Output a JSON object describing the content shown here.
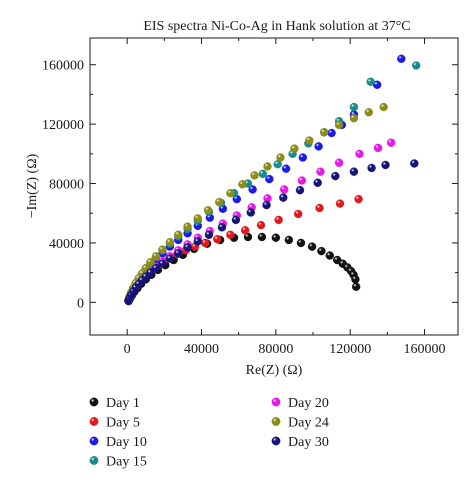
{
  "chart_data": {
    "type": "scatter",
    "title": "EIS spectra Ni-Co-Ag in Hank solution at 37°C",
    "xlabel": "Re(Z) (Ω)",
    "ylabel": "−Im(Z) (Ω)",
    "xlim": [
      -20000,
      178000
    ],
    "ylim": [
      -22000,
      178000
    ],
    "xticks": [
      0,
      40000,
      80000,
      120000,
      160000
    ],
    "yticks": [
      0,
      40000,
      80000,
      120000,
      160000
    ],
    "grid": false,
    "legend_position": "bottom, outside plot, two columns",
    "series": [
      {
        "name": "Day 1",
        "color": "#111111",
        "x": [
          800,
          1500,
          2500,
          3800,
          5500,
          7500,
          10000,
          13000,
          16500,
          20500,
          25000,
          30000,
          36000,
          43000,
          50000,
          57500,
          65000,
          72500,
          80000,
          87000,
          93500,
          99500,
          104500,
          109000,
          113000,
          116000,
          118500,
          120500,
          121800,
          122800,
          123200
        ],
        "y": [
          800,
          2500,
          4500,
          7000,
          9500,
          12500,
          15500,
          18500,
          21800,
          25000,
          28500,
          32000,
          36000,
          39500,
          42000,
          43500,
          44000,
          44000,
          43500,
          42000,
          40000,
          37500,
          34500,
          31500,
          28500,
          26000,
          23500,
          21000,
          18500,
          15500,
          10500
        ]
      },
      {
        "name": "Day 5",
        "color": "#e0191e",
        "x": [
          700,
          1300,
          2200,
          3300,
          4600,
          6000,
          7600,
          9500,
          11500,
          14000,
          16500,
          19500,
          23000,
          27000,
          31500,
          36500,
          42000,
          48500,
          55500,
          63500,
          72000,
          81500,
          92000,
          103500,
          114500,
          124500
        ],
        "y": [
          1000,
          2800,
          5000,
          7500,
          10000,
          12500,
          15000,
          17500,
          20000,
          22500,
          25000,
          27500,
          30000,
          32500,
          35000,
          37500,
          40000,
          42500,
          45500,
          48500,
          52000,
          55500,
          59500,
          63500,
          66500,
          69500
        ]
      },
      {
        "name": "Day 10",
        "color": "#1a1ae6",
        "x": [
          700,
          1300,
          2200,
          3300,
          4600,
          6200,
          8000,
          10000,
          12500,
          15500,
          19000,
          23000,
          27500,
          32500,
          38000,
          44500,
          51500,
          59000,
          67500,
          76500,
          85500,
          94500,
          103000,
          110000,
          115500,
          122000,
          134500,
          147500
        ],
        "y": [
          1200,
          3500,
          6000,
          9000,
          12000,
          15000,
          18000,
          21500,
          25000,
          29000,
          33000,
          37500,
          42000,
          46500,
          51500,
          57000,
          63000,
          69500,
          76000,
          83000,
          90000,
          97500,
          105000,
          114000,
          119500,
          126500,
          146500,
          164000
        ]
      },
      {
        "name": "Day 15",
        "color": "#1a8a8a",
        "x": [
          700,
          1300,
          2200,
          3300,
          4600,
          6200,
          8000,
          10000,
          12500,
          15500,
          19000,
          23000,
          27500,
          32500,
          38000,
          44000,
          50500,
          57500,
          65000,
          73000,
          81000,
          89000,
          97500,
          106000,
          114000,
          122000,
          131000,
          155500
        ],
        "y": [
          1500,
          3800,
          6500,
          9500,
          12500,
          15500,
          19000,
          22500,
          26500,
          30500,
          35000,
          39500,
          44500,
          49500,
          55000,
          61000,
          67000,
          73500,
          80000,
          86500,
          93000,
          100000,
          107000,
          114500,
          122000,
          131500,
          148500,
          159500
        ]
      },
      {
        "name": "Day 20",
        "color": "#e619e6",
        "x": [
          700,
          1300,
          2200,
          3300,
          4600,
          6200,
          8000,
          10000,
          12500,
          15500,
          19000,
          23000,
          27500,
          32500,
          38000,
          44500,
          51500,
          59000,
          67000,
          75500,
          84500,
          94000,
          104000,
          114000,
          125000,
          135000,
          142000
        ],
        "y": [
          1100,
          3200,
          5500,
          8000,
          10500,
          13000,
          15500,
          18000,
          21000,
          24000,
          27500,
          31000,
          35000,
          39000,
          43500,
          48000,
          53000,
          58500,
          64000,
          70000,
          76000,
          82000,
          88000,
          94000,
          100000,
          104000,
          107500
        ]
      },
      {
        "name": "Day 24",
        "color": "#8c8c1a",
        "x": [
          700,
          1300,
          2200,
          3300,
          4600,
          6200,
          8000,
          10000,
          12500,
          15500,
          19000,
          23000,
          27500,
          32500,
          38000,
          43500,
          49500,
          55500,
          62000,
          68500,
          75500,
          82500,
          90000,
          98000,
          106000,
          114000,
          122000,
          130000,
          138000
        ],
        "y": [
          1600,
          4000,
          6800,
          9800,
          13000,
          16200,
          19500,
          23000,
          27000,
          31000,
          35500,
          40500,
          45500,
          51000,
          56500,
          62000,
          67500,
          73500,
          79500,
          85500,
          91500,
          97500,
          103500,
          109000,
          114500,
          119500,
          124000,
          128000,
          131500
        ]
      },
      {
        "name": "Day 30",
        "color": "#14147a",
        "x": [
          700,
          1300,
          2200,
          3300,
          4600,
          6200,
          8000,
          10000,
          12500,
          15500,
          19000,
          23000,
          27500,
          32500,
          38000,
          44000,
          51000,
          58500,
          66500,
          75000,
          84000,
          93000,
          102500,
          112000,
          122000,
          131500,
          139000,
          154500
        ],
        "y": [
          1000,
          2900,
          5100,
          7500,
          9900,
          12300,
          14800,
          17300,
          20000,
          23000,
          26000,
          29500,
          33000,
          37000,
          41000,
          45500,
          50500,
          55500,
          60500,
          65500,
          70500,
          75500,
          80500,
          85000,
          88000,
          90500,
          92500,
          93500
        ]
      }
    ]
  }
}
